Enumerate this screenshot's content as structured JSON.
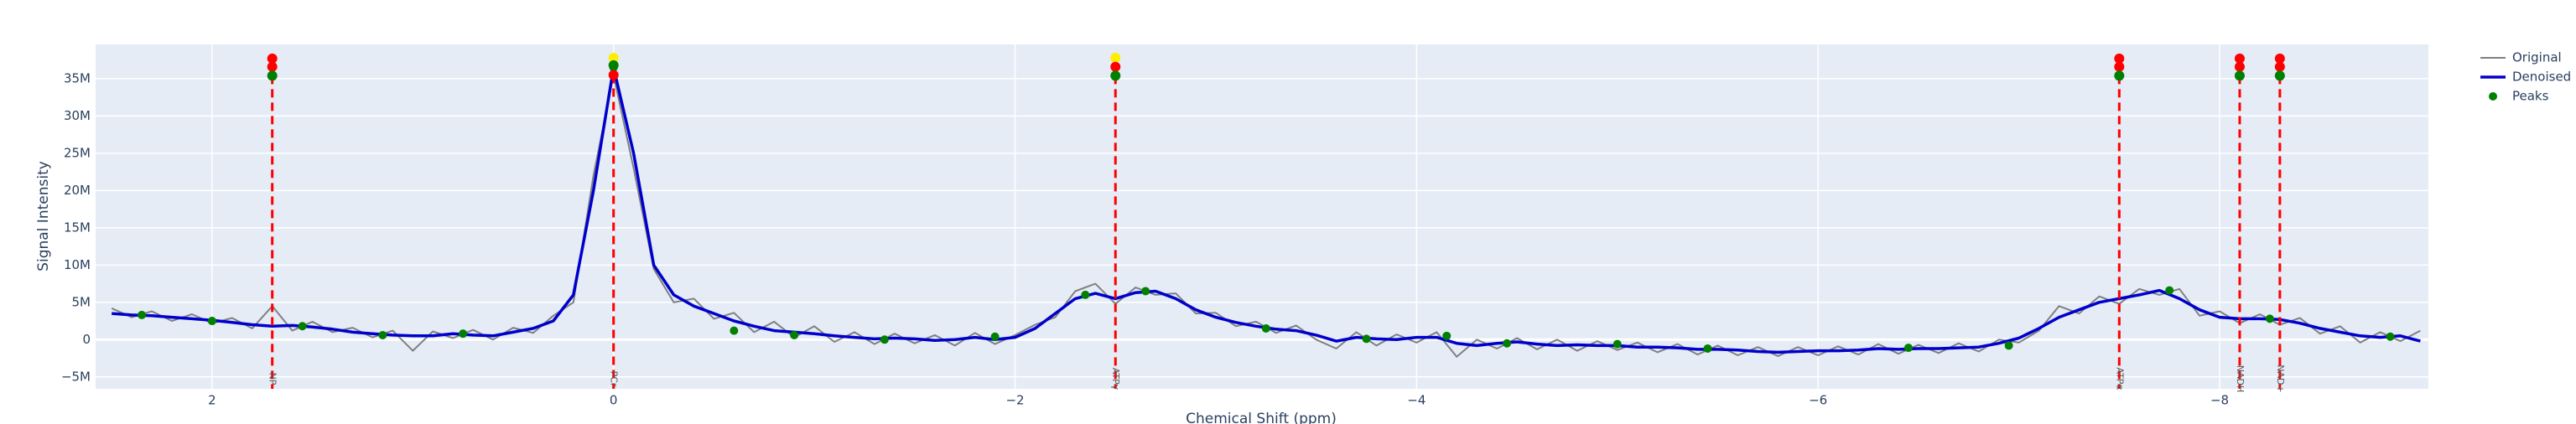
{
  "chart_data": {
    "type": "line",
    "xlabel": "Chemical Shift (ppm)",
    "ylabel": "Signal Intensity",
    "xlim": [
      2.58,
      -9.04
    ],
    "ylim": [
      -6.6,
      39.6
    ],
    "xticks": [
      2,
      0,
      {
        "value": -2,
        "label": "−2"
      },
      {
        "value": -4,
        "label": "−4"
      },
      {
        "value": -6,
        "label": "−6"
      },
      {
        "value": -8,
        "label": "−8"
      }
    ],
    "yticks": [
      {
        "value": -5,
        "label": "−5M"
      },
      0,
      {
        "value": 5,
        "label": "5M"
      },
      {
        "value": 10,
        "label": "10M"
      },
      {
        "value": 15,
        "label": "15M"
      },
      {
        "value": 20,
        "label": "20M"
      },
      {
        "value": 25,
        "label": "25M"
      },
      {
        "value": 30,
        "label": "30M"
      },
      {
        "value": 35,
        "label": "35M"
      }
    ],
    "grid": true,
    "legend": "top-right",
    "x": [
      2.5,
      2.4,
      2.3,
      2.2,
      2.1,
      2.0,
      1.9,
      1.8,
      1.7,
      1.6,
      1.5,
      1.4,
      1.3,
      1.2,
      1.1,
      1.0,
      0.9,
      0.8,
      0.7,
      0.6,
      0.5,
      0.4,
      0.3,
      0.2,
      0.1,
      0.0,
      -0.1,
      -0.2,
      -0.3,
      -0.4,
      -0.5,
      -0.6,
      -0.7,
      -0.8,
      -0.9,
      -1.0,
      -1.1,
      -1.2,
      -1.3,
      -1.4,
      -1.5,
      -1.6,
      -1.7,
      -1.8,
      -1.9,
      -2.0,
      -2.1,
      -2.2,
      -2.3,
      -2.4,
      -2.5,
      -2.6,
      -2.7,
      -2.8,
      -2.9,
      -3.0,
      -3.1,
      -3.2,
      -3.3,
      -3.4,
      -3.5,
      -3.6,
      -3.7,
      -3.8,
      -3.9,
      -4.0,
      -4.1,
      -4.2,
      -4.3,
      -4.4,
      -4.5,
      -4.6,
      -4.7,
      -4.8,
      -4.9,
      -5.0,
      -5.1,
      -5.2,
      -5.3,
      -5.4,
      -5.5,
      -5.6,
      -5.7,
      -5.8,
      -5.9,
      -6.0,
      -6.1,
      -6.2,
      -6.3,
      -6.4,
      -6.5,
      -6.6,
      -6.7,
      -6.8,
      -6.9,
      -7.0,
      -7.1,
      -7.2,
      -7.3,
      -7.4,
      -7.5,
      -7.6,
      -7.7,
      -7.8,
      -7.9,
      -8.0,
      -8.1,
      -8.2,
      -8.3,
      -8.4,
      -8.5,
      -8.6,
      -8.7,
      -8.8,
      -8.9,
      -9.0
    ],
    "series": [
      {
        "name": "Original",
        "mode": "line",
        "color": "#808080",
        "values": [
          4.2,
          3.0,
          3.8,
          2.5,
          3.4,
          2.2,
          2.9,
          1.5,
          4.5,
          1.2,
          2.4,
          1.0,
          1.6,
          0.3,
          1.2,
          -1.5,
          1.1,
          0.2,
          1.3,
          0.0,
          1.6,
          0.9,
          3.2,
          5.0,
          22,
          35.5,
          23,
          9.5,
          5.0,
          5.5,
          2.8,
          3.6,
          1.0,
          2.4,
          0.3,
          1.8,
          -0.3,
          1.0,
          -0.6,
          0.8,
          -0.5,
          0.6,
          -0.8,
          0.9,
          -0.6,
          0.6,
          2.0,
          3.0,
          6.5,
          7.5,
          4.8,
          7.0,
          6.0,
          6.2,
          3.5,
          3.6,
          1.8,
          2.4,
          0.9,
          1.9,
          0.0,
          -1.2,
          1.0,
          -0.8,
          0.7,
          -0.4,
          1.0,
          -2.3,
          0.0,
          -1.2,
          0.2,
          -1.3,
          0.0,
          -1.5,
          -0.2,
          -1.4,
          -0.4,
          -1.7,
          -0.6,
          -2.0,
          -0.8,
          -2.1,
          -1.0,
          -2.2,
          -1.0,
          -2.1,
          -0.9,
          -2.0,
          -0.6,
          -1.9,
          -0.7,
          -1.8,
          -0.5,
          -1.6,
          0.0,
          -0.4,
          1.2,
          4.5,
          3.5,
          5.8,
          4.8,
          6.8,
          6.0,
          6.8,
          3.2,
          3.8,
          2.2,
          3.4,
          2.0,
          2.9,
          0.8,
          1.8,
          -0.4,
          1.0,
          -0.2,
          1.2
        ]
      },
      {
        "name": "Denoised",
        "mode": "line",
        "color": "#0000cc",
        "values": [
          3.5,
          3.3,
          3.2,
          3.0,
          2.8,
          2.6,
          2.3,
          2.0,
          1.8,
          1.9,
          1.7,
          1.4,
          1.0,
          0.8,
          0.6,
          0.5,
          0.5,
          0.8,
          0.6,
          0.5,
          1.0,
          1.5,
          2.5,
          6,
          20,
          36.5,
          25,
          10,
          6,
          4.5,
          3.5,
          2.5,
          1.8,
          1.2,
          1.0,
          0.8,
          0.5,
          0.3,
          0.1,
          0.2,
          0.1,
          -0.1,
          0.0,
          0.3,
          0.0,
          0.3,
          1.5,
          3.5,
          5.5,
          6.2,
          5.5,
          6.3,
          6.5,
          5.5,
          4.0,
          3.0,
          2.3,
          1.8,
          1.4,
          1.2,
          0.6,
          -0.2,
          0.3,
          0.1,
          0.0,
          0.3,
          0.3,
          -0.5,
          -0.8,
          -0.5,
          -0.3,
          -0.6,
          -0.8,
          -0.7,
          -0.8,
          -0.8,
          -1.0,
          -1.0,
          -1.1,
          -1.3,
          -1.3,
          -1.4,
          -1.6,
          -1.7,
          -1.6,
          -1.5,
          -1.5,
          -1.4,
          -1.2,
          -1.3,
          -1.2,
          -1.2,
          -1.1,
          -1.0,
          -0.5,
          0.2,
          1.5,
          3.0,
          4.0,
          5.0,
          5.5,
          6.0,
          6.6,
          5.5,
          4.0,
          3.0,
          2.8,
          2.8,
          2.7,
          2.2,
          1.5,
          1.0,
          0.5,
          0.3,
          0.5,
          -0.2
        ]
      },
      {
        "name": "Peaks",
        "mode": "markers",
        "color": "#008000",
        "x": [
          2.35,
          2.0,
          1.55,
          1.15,
          0.75,
          0.0,
          -0.6,
          -0.9,
          -1.35,
          -1.9,
          -2.35,
          -2.65,
          -3.25,
          -3.75,
          -4.15,
          -4.45,
          -5.0,
          -5.45,
          -6.45,
          -6.95,
          -7.75,
          -8.25,
          -8.85
        ],
        "values": [
          3.3,
          2.5,
          1.8,
          0.6,
          0.8,
          36.5,
          1.2,
          0.6,
          0.0,
          0.4,
          6.0,
          6.5,
          1.5,
          0.1,
          0.5,
          -0.5,
          -0.6,
          -1.2,
          -1.1,
          -0.8,
          6.6,
          2.8,
          0.4
        ]
      }
    ],
    "references": [
      {
        "x": 1.7,
        "label": "NP",
        "y": [
          37.7,
          36.6,
          35.4
        ],
        "colors": [
          "#ff0000",
          "#ff0000",
          "#008000"
        ]
      },
      {
        "x": 0.0,
        "label": "PCr",
        "y": [
          37.8,
          36.8,
          35.5
        ],
        "colors": [
          "#ffee00",
          "#008000",
          "#ff0000"
        ]
      },
      {
        "x": -2.5,
        "label": "ATPγ",
        "y": [
          37.8,
          36.6,
          35.4
        ],
        "colors": [
          "#ffee00",
          "#ff0000",
          "#008000"
        ]
      },
      {
        "x": -7.5,
        "label": "ATPα",
        "y": [
          37.7,
          36.6,
          35.4
        ],
        "colors": [
          "#ff0000",
          "#ff0000",
          "#008000"
        ]
      },
      {
        "x": -8.1,
        "label": "NADH",
        "y": [
          37.7,
          36.6,
          35.4
        ],
        "colors": [
          "#ff0000",
          "#ff0000",
          "#008000"
        ]
      },
      {
        "x": -8.3,
        "label": "NAD+",
        "y": [
          37.7,
          36.6,
          35.4
        ],
        "colors": [
          "#ff0000",
          "#ff0000",
          "#008000"
        ]
      }
    ]
  }
}
